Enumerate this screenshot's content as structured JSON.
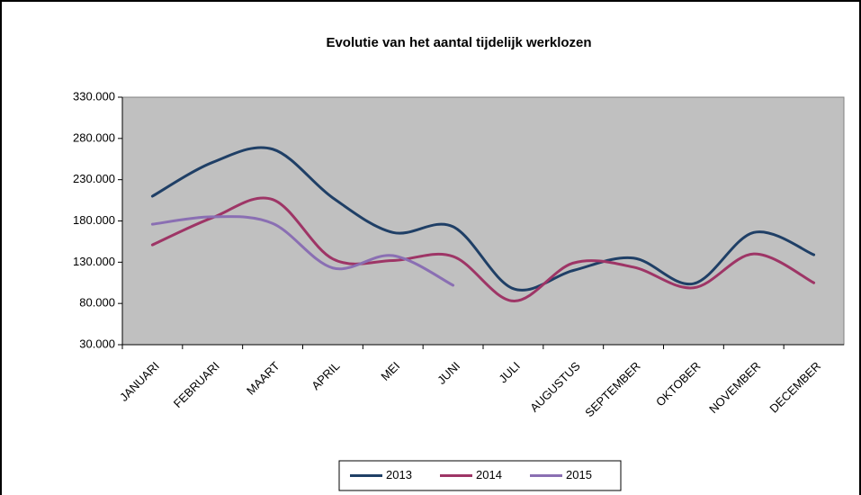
{
  "chart_data": {
    "type": "line",
    "title": "Evolutie van het aantal tijdelijk werklozen",
    "categories": [
      "JANUARI",
      "FEBRUARI",
      "MAART",
      "APRIL",
      "MEI",
      "JUNI",
      "JULI",
      "AUGUSTUS",
      "SEPTEMBER",
      "OKTOBER",
      "NOVEMBER",
      "DECEMBER"
    ],
    "series": [
      {
        "name": "2013",
        "color": "#1f3f66",
        "values": [
          210000,
          251000,
          267000,
          208000,
          166000,
          173000,
          98000,
          120000,
          135000,
          104000,
          166000,
          139000
        ]
      },
      {
        "name": "2014",
        "color": "#9e3566",
        "values": [
          151000,
          184000,
          206000,
          134000,
          132000,
          137000,
          83000,
          129000,
          124000,
          99000,
          140000,
          105000
        ]
      },
      {
        "name": "2015",
        "color": "#8a6fb3",
        "values": [
          176000,
          185000,
          177000,
          123000,
          138000,
          102000,
          null,
          null,
          null,
          null,
          null,
          null
        ]
      }
    ],
    "ylim": [
      30000,
      330000
    ],
    "yticks": [
      {
        "value": 30000,
        "label": "30.000"
      },
      {
        "value": 80000,
        "label": "80.000"
      },
      {
        "value": 130000,
        "label": "130.000"
      },
      {
        "value": 180000,
        "label": "180.000"
      },
      {
        "value": 230000,
        "label": "230.000"
      },
      {
        "value": 280000,
        "label": "280.000"
      },
      {
        "value": 330000,
        "label": "330.000"
      }
    ],
    "grid": false,
    "smooth": true,
    "legend": "bottom"
  }
}
